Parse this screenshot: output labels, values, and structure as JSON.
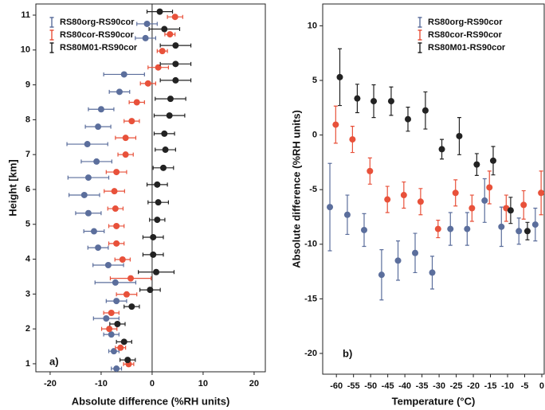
{
  "chart_data": [
    {
      "type": "errorbar",
      "orientation": "horizontal",
      "panel_label": "a)",
      "x_label": "Absolute difference (%RH units)",
      "y_label": "Height [km]",
      "xlim": [
        -22.8,
        22.2
      ],
      "xticks": [
        -20,
        -10,
        0,
        10,
        20
      ],
      "ylim": [
        0.77,
        11.32
      ],
      "yticks": [
        1,
        2,
        3,
        4,
        5,
        6,
        7,
        8,
        9,
        10,
        11
      ],
      "legend": "upper left",
      "zero_line": true,
      "series": [
        {
          "name": "RS80org-RS90cor",
          "color": "#5b6e9c",
          "y": [
            0.86,
            1.36,
            1.84,
            2.3,
            2.8,
            3.33,
            3.83,
            4.33,
            4.8,
            5.32,
            5.84,
            6.34,
            6.8,
            7.3,
            7.8,
            8.3,
            8.8,
            9.3,
            10.34,
            10.75
          ],
          "x": [
            -7,
            -7.5,
            -8,
            -9,
            -7,
            -7.2,
            -8.6,
            -10.6,
            -11.4,
            -12.5,
            -13.3,
            -12.5,
            -10.9,
            -12.7,
            -10.6,
            -10,
            -6.4,
            -5.5,
            -1.3,
            -1
          ],
          "errors": [
            1,
            1,
            1.5,
            2.5,
            2,
            4,
            3,
            2,
            2,
            2.5,
            3,
            4,
            3,
            4,
            2.5,
            2.5,
            2,
            4,
            2,
            2
          ]
        },
        {
          "name": "RS80cor-RS90cor",
          "color": "#e8513a",
          "y": [
            0.99,
            1.46,
            2.0,
            2.46,
            2.99,
            3.45,
            3.99,
            4.45,
            4.95,
            5.45,
            5.95,
            6.5,
            7.0,
            7.48,
            7.96,
            8.5,
            9.04,
            9.5,
            9.97,
            10.45,
            10.95
          ],
          "x": [
            -4.6,
            -6.2,
            -8.4,
            -8,
            -5,
            -4.2,
            -5.8,
            -7,
            -7,
            -7.2,
            -7.4,
            -7,
            -5.2,
            -5.2,
            -4,
            -3,
            -0.8,
            1.2,
            2,
            3.5,
            4.5
          ],
          "errors": [
            1,
            1,
            1.5,
            1.5,
            2,
            4,
            1.5,
            1.5,
            1.5,
            1.5,
            2,
            2,
            1.5,
            2,
            1.5,
            1.5,
            1.5,
            2,
            1,
            1,
            1.5
          ]
        },
        {
          "name": "RS80M01-RS90cor",
          "color": "#222222",
          "y": [
            1.11,
            1.63,
            2.14,
            2.64,
            3.12,
            3.63,
            4.13,
            4.63,
            5.13,
            5.63,
            6.14,
            6.62,
            7.14,
            7.6,
            8.12,
            8.6,
            9.13,
            9.6,
            10.13,
            10.6,
            11.1
          ],
          "x": [
            -4.8,
            -5.5,
            -6.8,
            -4,
            -0.4,
            0.8,
            0.2,
            0.2,
            1,
            1.2,
            1,
            2.2,
            2.6,
            2.4,
            3.4,
            3.6,
            4.6,
            4.6,
            4.6,
            2.4,
            1.5
          ],
          "errors": [
            1.5,
            1.5,
            1.5,
            1.5,
            2,
            3.5,
            2,
            2,
            1.5,
            2,
            2,
            2,
            2,
            2,
            3,
            3,
            3,
            3,
            3,
            3,
            2.5
          ]
        }
      ]
    },
    {
      "type": "errorbar",
      "orientation": "vertical",
      "panel_label": "b)",
      "x_label": "Temperature (°C)",
      "y_label": "Absolute difference (%RH units)",
      "xlim": [
        -64,
        0.7
      ],
      "xticks": [
        -60,
        -55,
        -50,
        -45,
        -40,
        -35,
        -30,
        -25,
        -20,
        -15,
        -10,
        -5,
        0
      ],
      "ylim": [
        -21.9,
        12.0
      ],
      "yticks": [
        10,
        5,
        0,
        -5,
        -10,
        -15,
        -20
      ],
      "legend": "upper right",
      "series": [
        {
          "name": "RS80org-RS90cor",
          "color": "#5b6e9c",
          "x": [
            -61.9,
            -56.8,
            -51.9,
            -46.8,
            -42,
            -37,
            -32,
            -26.7,
            -21.8,
            -16.7,
            -11.8,
            -6.7,
            -1.9
          ],
          "y": [
            -6.6,
            -7.3,
            -8.7,
            -12.8,
            -11.5,
            -10.8,
            -12.6,
            -8.6,
            -8.6,
            -6,
            -8.4,
            -8.8,
            -8.2
          ],
          "errors": [
            4,
            1.8,
            1.5,
            2.3,
            1.8,
            1.8,
            1.5,
            1.5,
            1.5,
            2,
            1.8,
            1.2,
            1.5
          ]
        },
        {
          "name": "RS80cor-RS90cor",
          "color": "#e8513a",
          "x": [
            -60.2,
            -55.3,
            -50.2,
            -45.1,
            -40.3,
            -35.4,
            -30.3,
            -25.2,
            -20.4,
            -15.3,
            -10.4,
            -5.3,
            -0.2
          ],
          "y": [
            0.95,
            -0.4,
            -3.3,
            -5.9,
            -5.5,
            -6.1,
            -8.6,
            -5.3,
            -6.7,
            -4.8,
            -6.7,
            -6.4,
            -5.3
          ],
          "errors": [
            1.7,
            1.2,
            1.2,
            1.2,
            1.2,
            1.2,
            0.8,
            1.2,
            1.2,
            1.5,
            1.2,
            1.3,
            2
          ]
        },
        {
          "name": "RS80M01-RS90cor",
          "color": "#222222",
          "x": [
            -59,
            -53.9,
            -49.1,
            -44,
            -39.1,
            -34,
            -29.2,
            -24.1,
            -19,
            -14.2,
            -9.1,
            -4.2
          ],
          "y": [
            5.3,
            3.35,
            3.1,
            3.1,
            1.45,
            2.25,
            -1.3,
            -0.1,
            -2.7,
            -2.35,
            -6.9,
            -8.8
          ],
          "errors": [
            2.6,
            1.3,
            1.5,
            1.3,
            1.1,
            1.7,
            0.9,
            1.7,
            1,
            1.3,
            1.2,
            0.8
          ]
        }
      ]
    }
  ]
}
